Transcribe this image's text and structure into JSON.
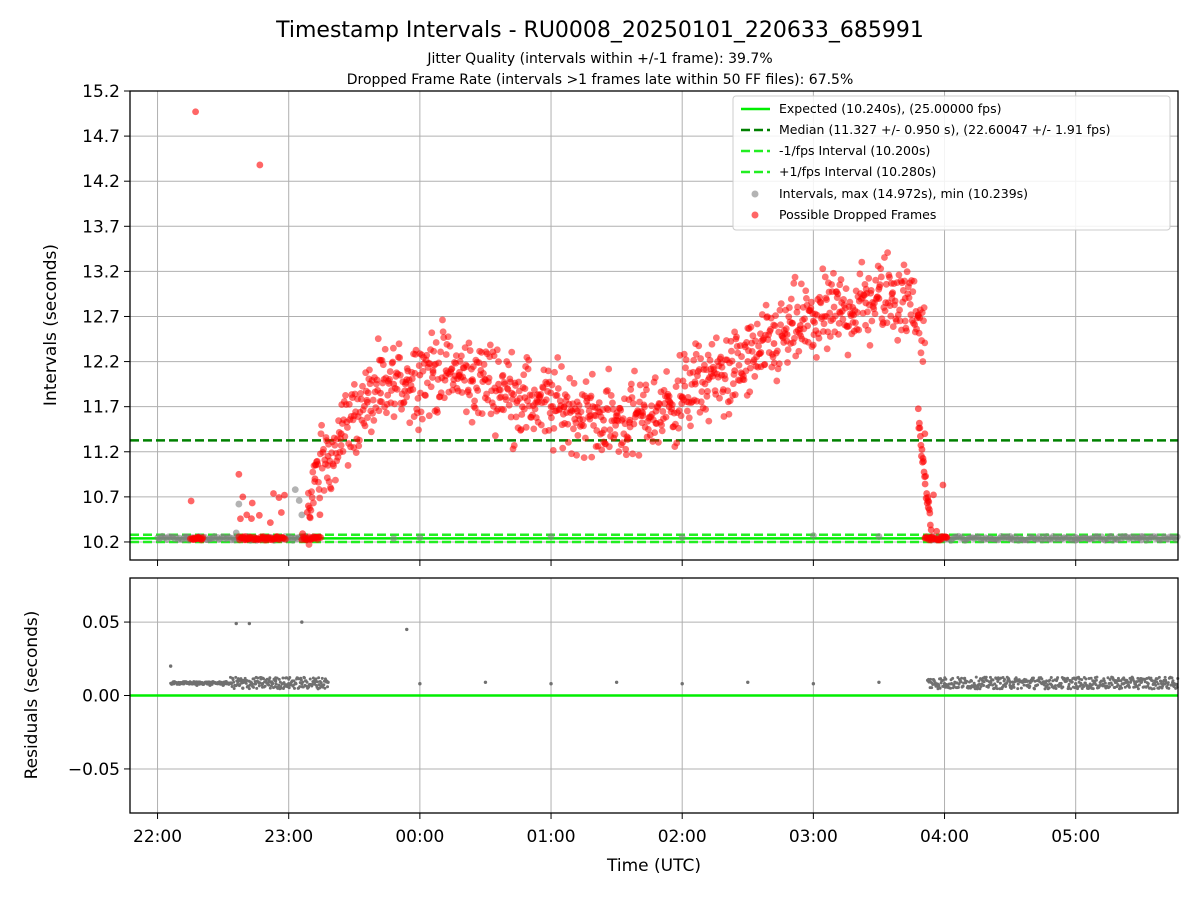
{
  "chart_data": [
    {
      "type": "scatter",
      "title": "Timestamp Intervals - RU0008_20250101_220633_685991",
      "subtitle_1": "Jitter Quality (intervals within +/-1 frame): 39.7%",
      "subtitle_2": "Dropped Frame Rate (intervals >1 frames late within 50 FF files): 67.5%",
      "ylabel": "Intervals (seconds)",
      "xlabel": "",
      "ylim": [
        10.0,
        15.2
      ],
      "yticks": [
        "10.2",
        "10.7",
        "11.2",
        "11.7",
        "12.2",
        "12.7",
        "13.2",
        "13.7",
        "14.2",
        "14.7",
        "15.2"
      ],
      "xticks": [
        "22:00",
        "23:00",
        "00:00",
        "01:00",
        "02:00",
        "03:00",
        "04:00",
        "05:00"
      ],
      "xlim_hours": [
        21.79,
        29.78
      ],
      "grid": true,
      "legend_position": "top-right",
      "reference_lines": [
        {
          "name": "Expected (10.240s), (25.00000 fps)",
          "value": 10.24,
          "style": "solid",
          "color": "#00ee00"
        },
        {
          "name": "Median (11.327 +/- 0.950 s), (22.60047 +/- 1.91 fps)",
          "value": 11.327,
          "style": "dashed",
          "color": "#008000"
        },
        {
          "name": "-1/fps Interval (10.200s)",
          "value": 10.2,
          "style": "dashed",
          "color": "#22ee22"
        },
        {
          "name": "+1/fps Interval (10.280s)",
          "value": 10.28,
          "style": "dashed",
          "color": "#22ee22"
        }
      ],
      "series": [
        {
          "name": "Intervals, max (14.972s), min (10.239s)",
          "color": "#808080",
          "x_hours": [
            22.22,
            22.4,
            22.6,
            22.62,
            23.05,
            23.08,
            23.1,
            23.8,
            24.0,
            25.0,
            26.0,
            27.0,
            27.5,
            28.0,
            28.5,
            29.0,
            29.5
          ],
          "values": [
            10.24,
            10.24,
            10.3,
            10.62,
            10.78,
            10.66,
            10.5,
            10.24,
            10.25,
            10.26,
            10.25,
            10.27,
            10.26,
            10.25,
            10.26,
            10.25,
            10.26
          ]
        },
        {
          "name": "Possible Dropped Frames",
          "color": "#ff0000",
          "x_hours": [
            22.29,
            22.78,
            22.62,
            22.65,
            22.68,
            22.7,
            23.15,
            23.2,
            23.3,
            23.4,
            23.5,
            23.6,
            23.7,
            23.8,
            23.9,
            24.0,
            24.1,
            24.2,
            24.3,
            24.4,
            24.5,
            24.6,
            24.7,
            24.8,
            24.9,
            25.0,
            25.1,
            25.2,
            25.3,
            25.4,
            25.5,
            25.6,
            25.7,
            25.8,
            25.9,
            26.0,
            26.1,
            26.2,
            26.3,
            26.4,
            26.5,
            26.6,
            26.7,
            26.8,
            26.9,
            27.0,
            27.1,
            27.2,
            27.3,
            27.4,
            27.5,
            27.6,
            27.7,
            27.8,
            27.85,
            27.9
          ],
          "values": [
            14.97,
            14.38,
            10.95,
            10.7,
            10.5,
            10.24,
            10.6,
            10.9,
            11.15,
            11.4,
            11.6,
            11.75,
            11.85,
            11.95,
            12.0,
            12.05,
            12.1,
            12.1,
            12.05,
            12.0,
            12.0,
            11.95,
            11.85,
            11.8,
            11.75,
            11.7,
            11.7,
            11.65,
            11.6,
            11.55,
            11.55,
            11.55,
            11.6,
            11.65,
            11.7,
            11.8,
            11.95,
            12.0,
            12.05,
            12.1,
            12.2,
            12.3,
            12.4,
            12.5,
            12.6,
            12.65,
            12.7,
            12.75,
            12.8,
            12.85,
            12.9,
            12.95,
            12.9,
            12.7,
            11.4,
            10.25
          ]
        }
      ]
    },
    {
      "type": "scatter",
      "ylabel": "Residuals (seconds)",
      "xlabel": "Time (UTC)",
      "ylim": [
        -0.08,
        0.08
      ],
      "yticks": [
        "−0.05",
        "0.00",
        "0.05"
      ],
      "xticks": [
        "22:00",
        "23:00",
        "00:00",
        "01:00",
        "02:00",
        "03:00",
        "04:00",
        "05:00"
      ],
      "xlim_hours": [
        21.79,
        29.78
      ],
      "grid": true,
      "reference_line": {
        "value": 0.0,
        "color": "#00ee00"
      },
      "series": [
        {
          "name": "",
          "color": "#707070",
          "x_hours": [
            22.1,
            22.2,
            22.3,
            22.4,
            22.5,
            22.6,
            22.65,
            22.7,
            22.8,
            22.9,
            23.0,
            23.1,
            23.2,
            23.3,
            23.9,
            24.0,
            24.5,
            25.0,
            25.5,
            26.0,
            26.5,
            27.0,
            27.5,
            28.0,
            28.5,
            29.0,
            29.5,
            29.75
          ],
          "values": [
            0.02,
            0.008,
            0.007,
            0.007,
            0.007,
            0.049,
            0.005,
            0.049,
            0.008,
            0.01,
            0.008,
            0.05,
            0.009,
            0.009,
            0.045,
            0.008,
            0.009,
            0.008,
            0.009,
            0.008,
            0.009,
            0.008,
            0.009,
            0.008,
            0.009,
            0.008,
            0.009,
            0.008
          ]
        }
      ]
    }
  ]
}
